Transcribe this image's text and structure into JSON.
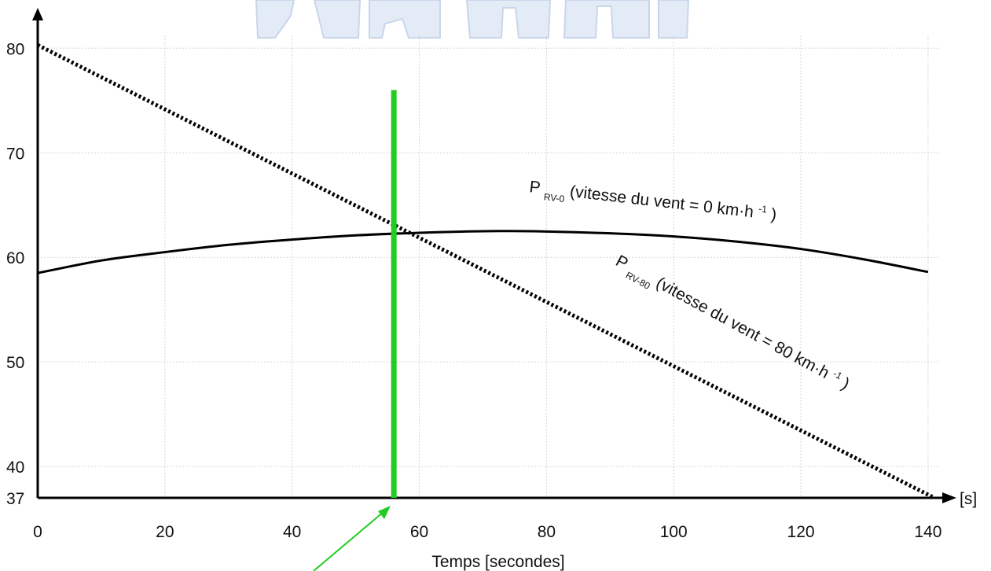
{
  "chart_data": {
    "type": "line",
    "xlabel": "Temps [secondes]",
    "x_unit_label": "[s]",
    "ylabel": "",
    "xlim": [
      0,
      141
    ],
    "ylim": [
      37,
      81
    ],
    "x_ticks": [
      "0",
      "20",
      "40",
      "60",
      "80",
      "100",
      "120",
      "140"
    ],
    "y_ticks": [
      "37",
      "40",
      "50",
      "60",
      "70",
      "80"
    ],
    "grid": true,
    "series": [
      {
        "name": "P RV-0 (vitesse du vent = 0 km·h-1)",
        "style": "solid",
        "color": "#000000",
        "x": [
          0,
          10,
          20,
          30,
          40,
          50,
          60,
          70,
          78,
          90,
          100,
          110,
          120,
          130,
          140
        ],
        "y": [
          58.5,
          59.7,
          60.5,
          61.2,
          61.7,
          62.1,
          62.35,
          62.5,
          62.5,
          62.3,
          62,
          61.5,
          60.8,
          59.8,
          58.6
        ]
      },
      {
        "name": "P RV-80 (vitesse du vent = 80 km·h-1)",
        "style": "dotted",
        "color": "#000000",
        "x": [
          0,
          141
        ],
        "y": [
          80.3,
          37
        ]
      }
    ],
    "annotations": {
      "series_labels": [
        {
          "main": "P",
          "sub": "RV-0",
          "text": " (vitesse du vent = 0 km·h",
          "sup": "-1",
          "close": ")"
        },
        {
          "main": "P",
          "sub": "RV-80",
          "text": " (vitesse du vent = 80 km·h",
          "sup": "-1",
          "close": ")"
        }
      ],
      "vertical_marker": {
        "x": 56,
        "y_top": 76,
        "color": "#22cc22"
      },
      "arrow_color": "#22cc22"
    }
  }
}
